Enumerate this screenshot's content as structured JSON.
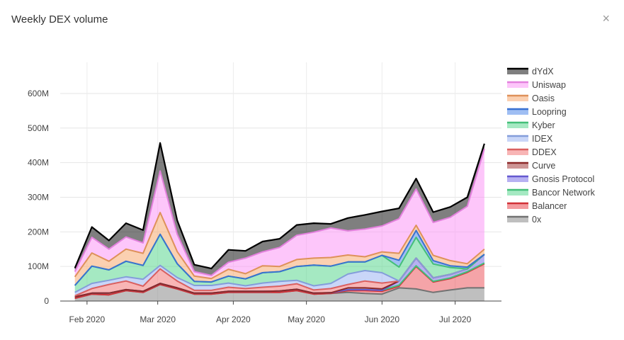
{
  "panel": {
    "title": "Weekly DEX volume",
    "close_label": "×"
  },
  "colors": {
    "0x": "#7f7f7f",
    "Balancer": "#e8363d",
    "Bancor Network": "#4cd486",
    "Gnosis Protocol": "#6f63e6",
    "Curve": "#9b2c2c",
    "DDEX": "#f26b6b",
    "IDEX": "#93aef2",
    "Kyber": "#4cd486",
    "Loopring": "#3f7ee8",
    "Oasis": "#f7a164",
    "Uniswap": "#fc8ef5",
    "dYdX": "#000000"
  },
  "chart_data": {
    "type": "area",
    "stacked": true,
    "x": [
      "2020-01-27",
      "2020-02-03",
      "2020-02-10",
      "2020-02-17",
      "2020-02-24",
      "2020-03-02",
      "2020-03-09",
      "2020-03-16",
      "2020-03-23",
      "2020-03-30",
      "2020-04-06",
      "2020-04-13",
      "2020-04-20",
      "2020-04-27",
      "2020-05-04",
      "2020-05-11",
      "2020-05-18",
      "2020-05-25",
      "2020-06-01",
      "2020-06-08",
      "2020-06-15",
      "2020-06-22",
      "2020-06-29",
      "2020-07-06",
      "2020-07-13"
    ],
    "x_ticks": [
      {
        "date": "2020-02-01",
        "label": "Feb 2020"
      },
      {
        "date": "2020-03-01",
        "label": "Mar 2020"
      },
      {
        "date": "2020-04-01",
        "label": "Apr 2020"
      },
      {
        "date": "2020-05-01",
        "label": "May 2020"
      },
      {
        "date": "2020-06-01",
        "label": "Jun 2020"
      },
      {
        "date": "2020-07-01",
        "label": "Jul 2020"
      }
    ],
    "y_ticks": [
      {
        "value": 0,
        "label": "0"
      },
      {
        "value": 100,
        "label": "100M"
      },
      {
        "value": 200,
        "label": "200M"
      },
      {
        "value": 300,
        "label": "300M"
      },
      {
        "value": 400,
        "label": "400M"
      },
      {
        "value": 500,
        "label": "500M"
      },
      {
        "value": 600,
        "label": "600M"
      }
    ],
    "y_unit": "M",
    "ylim": [
      0,
      690
    ],
    "xlim": [
      "2020-01-21",
      "2020-07-20"
    ],
    "grid": true,
    "legend_position": "right",
    "legend_order": [
      "dYdX",
      "Uniswap",
      "Oasis",
      "Loopring",
      "Kyber",
      "IDEX",
      "DDEX",
      "Curve",
      "Gnosis Protocol",
      "Bancor Network",
      "Balancer",
      "0x"
    ],
    "series": [
      {
        "name": "0x",
        "values": [
          8,
          20,
          18,
          30,
          25,
          48,
          35,
          20,
          20,
          25,
          25,
          25,
          25,
          30,
          20,
          22,
          25,
          22,
          20,
          38,
          35,
          25,
          32,
          38,
          38
        ]
      },
      {
        "name": "Balancer",
        "values": [
          0,
          0,
          0,
          0,
          0,
          0,
          0,
          0,
          0,
          0,
          0,
          0,
          0,
          0,
          0,
          0,
          5,
          8,
          8,
          5,
          65,
          30,
          33,
          45,
          70
        ]
      },
      {
        "name": "Bancor Network",
        "values": [
          4,
          3,
          5,
          3,
          3,
          3,
          3,
          3,
          3,
          3,
          3,
          3,
          4,
          4,
          3,
          2,
          3,
          3,
          3,
          3,
          2,
          2,
          2,
          2,
          2
        ]
      },
      {
        "name": "Gnosis Protocol",
        "values": [
          0,
          0,
          0,
          0,
          0,
          0,
          0,
          0,
          0,
          0,
          0,
          0,
          0,
          0,
          0,
          0,
          0,
          0,
          0,
          12,
          22,
          10,
          10,
          8,
          25
        ]
      },
      {
        "name": "Curve",
        "values": [
          0,
          0,
          0,
          0,
          0,
          0,
          0,
          0,
          0,
          0,
          0,
          0,
          0,
          0,
          0,
          0,
          5,
          5,
          4,
          0,
          0,
          0,
          0,
          0,
          0
        ]
      },
      {
        "name": "DDEX",
        "values": [
          3,
          13,
          25,
          25,
          15,
          42,
          20,
          8,
          8,
          12,
          8,
          12,
          14,
          16,
          9,
          12,
          10,
          20,
          17,
          0,
          0,
          0,
          0,
          0,
          0
        ]
      },
      {
        "name": "IDEX",
        "values": [
          10,
          15,
          12,
          12,
          20,
          10,
          10,
          14,
          14,
          12,
          8,
          12,
          14,
          10,
          12,
          15,
          30,
          30,
          30,
          0,
          0,
          0,
          0,
          0,
          0
        ]
      },
      {
        "name": "Kyber",
        "values": [
          20,
          50,
          30,
          45,
          40,
          90,
          40,
          12,
          10,
          20,
          20,
          30,
          28,
          40,
          60,
          50,
          35,
          25,
          50,
          40,
          60,
          40,
          20,
          0,
          0
        ]
      },
      {
        "name": "Loopring",
        "values": [
          0,
          0,
          0,
          0,
          0,
          0,
          0,
          0,
          0,
          0,
          0,
          0,
          0,
          0,
          0,
          0,
          0,
          0,
          0,
          20,
          20,
          10,
          5,
          5,
          0
        ]
      },
      {
        "name": "Oasis",
        "values": [
          25,
          38,
          25,
          35,
          35,
          63,
          35,
          15,
          10,
          20,
          15,
          20,
          15,
          20,
          20,
          25,
          20,
          15,
          10,
          20,
          15,
          15,
          15,
          10,
          15
        ]
      },
      {
        "name": "Uniswap",
        "values": [
          15,
          45,
          35,
          35,
          30,
          120,
          50,
          13,
          9,
          20,
          45,
          40,
          55,
          70,
          75,
          85,
          70,
          80,
          75,
          100,
          105,
          95,
          125,
          166,
          290
        ]
      },
      {
        "name": "dYdX",
        "values": [
          10,
          30,
          25,
          40,
          37,
          81,
          40,
          20,
          20,
          36,
          21,
          30,
          25,
          30,
          26,
          12,
          37,
          41,
          42,
          30,
          30,
          30,
          30,
          26,
          15
        ]
      }
    ]
  }
}
